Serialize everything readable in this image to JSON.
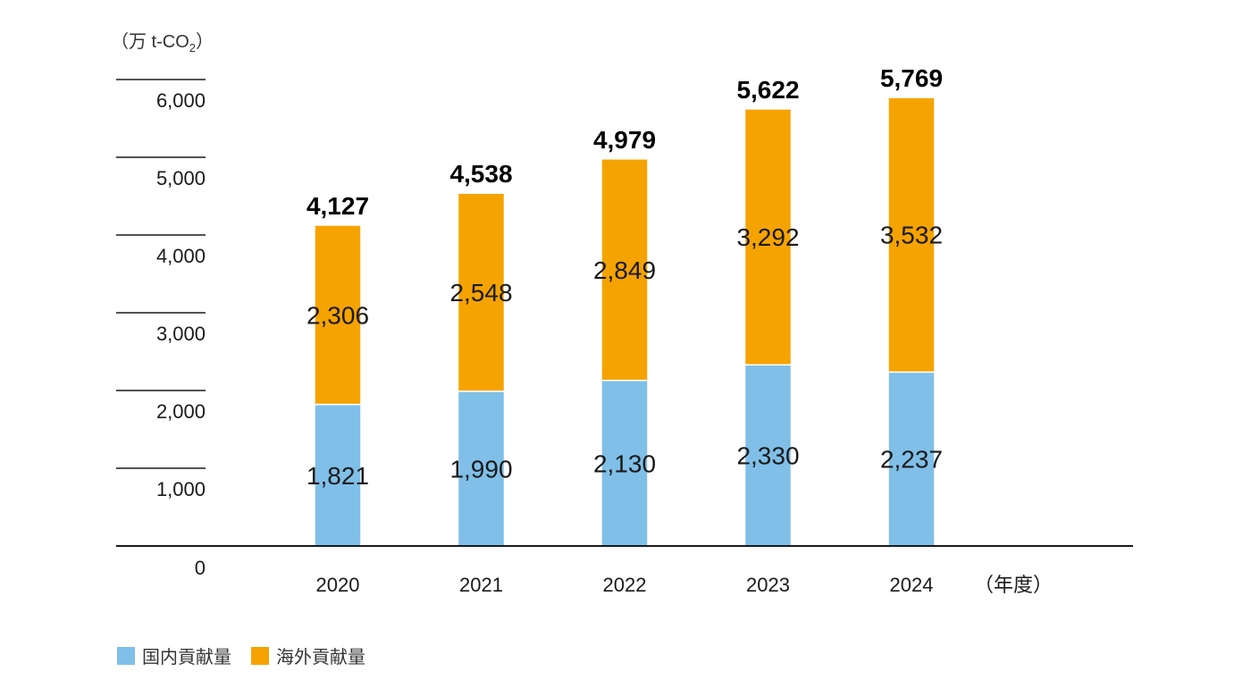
{
  "chart_data": {
    "type": "bar",
    "stacked": true,
    "unit_label_prefix": "（万 t-CO",
    "unit_label_sub": "2",
    "unit_label_suffix": "）",
    "xlabel_suffix": "（年度）",
    "categories": [
      "2020",
      "2021",
      "2022",
      "2023",
      "2024"
    ],
    "series": [
      {
        "name": "国内貢献量",
        "color": "#7fbfe8",
        "values": [
          1821,
          1990,
          2130,
          2330,
          2237
        ],
        "labels": [
          "1,821",
          "1,990",
          "2,130",
          "2,330",
          "2,237"
        ]
      },
      {
        "name": "海外貢献量",
        "color": "#f5a300",
        "values": [
          2306,
          2548,
          2849,
          3292,
          3532
        ],
        "labels": [
          "2,306",
          "2,548",
          "2,849",
          "3,292",
          "3,532"
        ]
      }
    ],
    "totals": [
      4127,
      4538,
      4979,
      5622,
      5769
    ],
    "total_labels": [
      "4,127",
      "4,538",
      "4,979",
      "5,622",
      "5,769"
    ],
    "yticks": [
      0,
      1000,
      2000,
      3000,
      4000,
      5000,
      6000
    ],
    "ytick_labels": [
      "0",
      "1,000",
      "2,000",
      "3,000",
      "4,000",
      "5,000",
      "6,000"
    ],
    "ylim": [
      0,
      6000
    ],
    "grid": false,
    "legend_position": "bottom-left"
  }
}
